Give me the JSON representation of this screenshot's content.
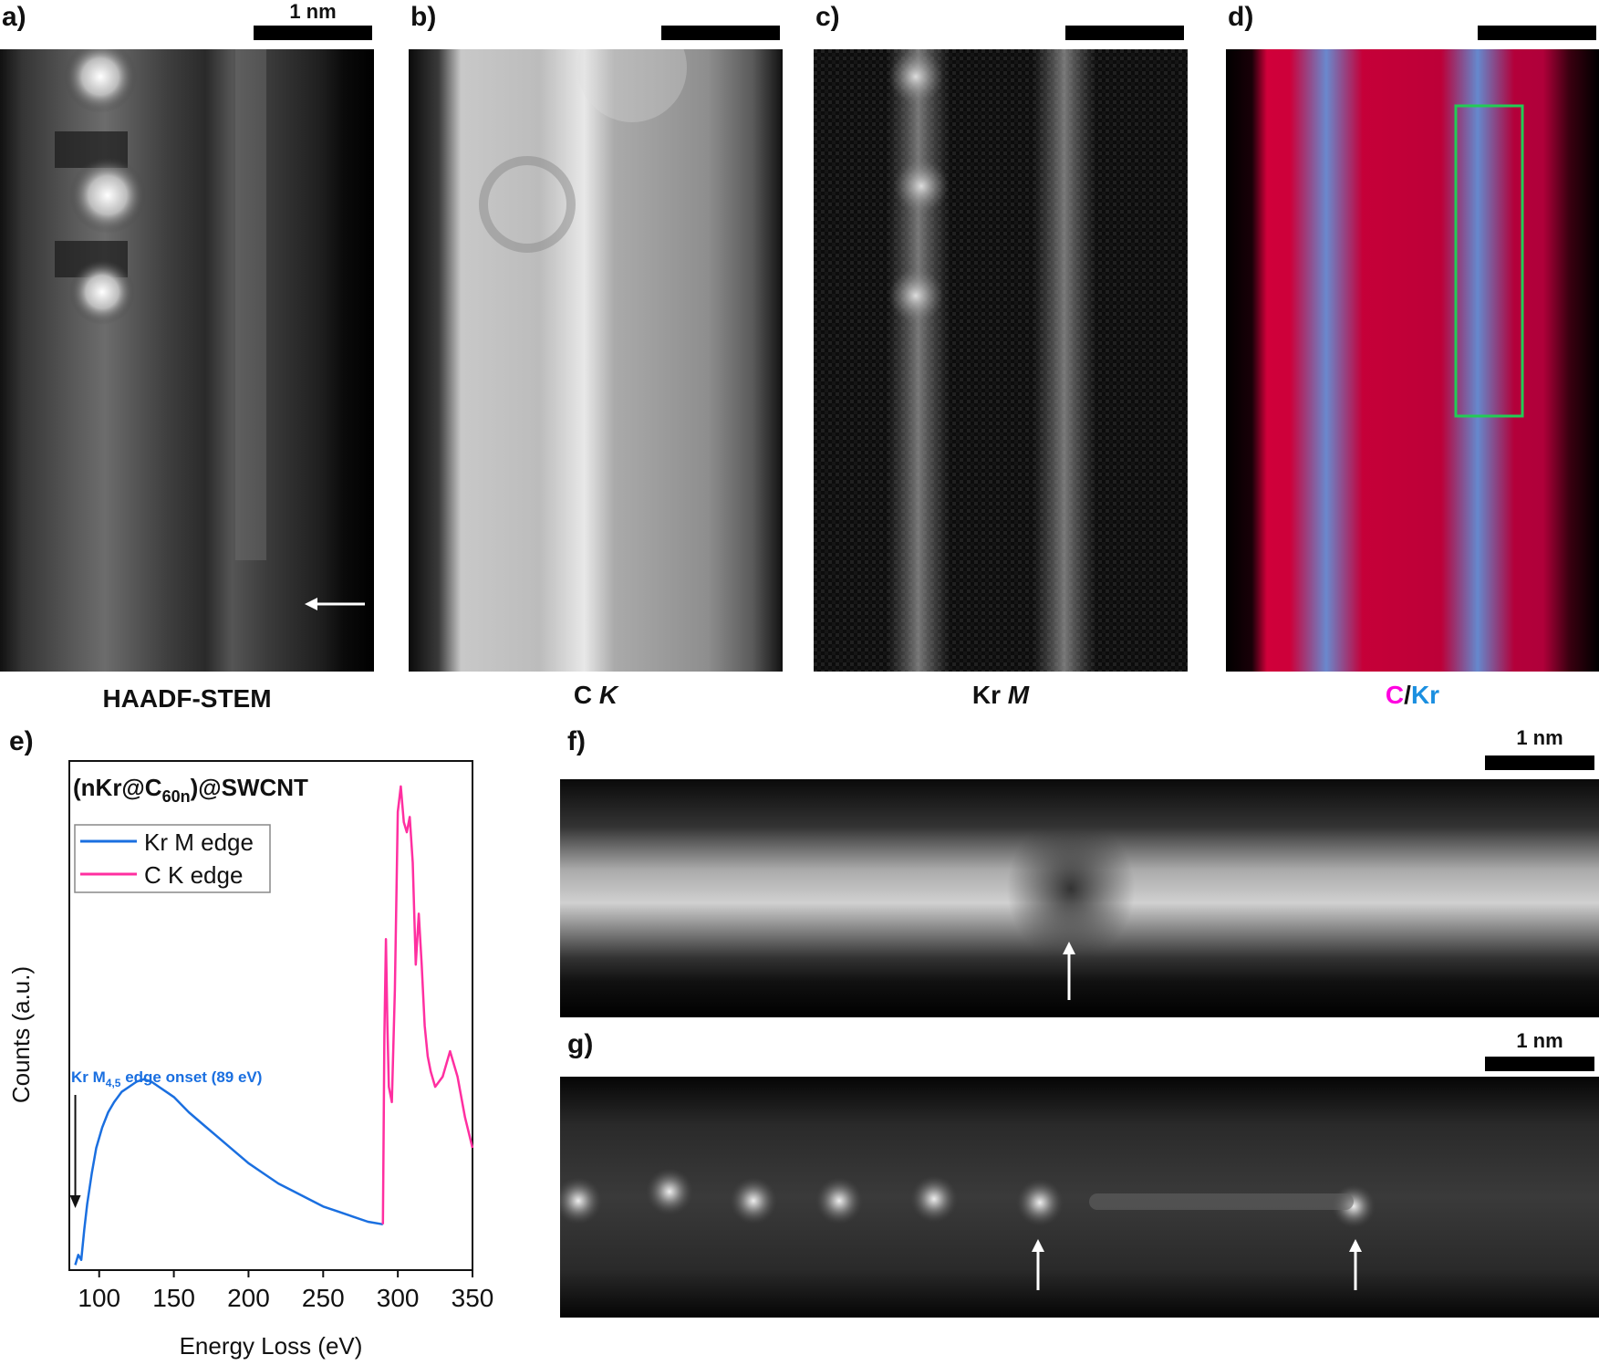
{
  "panels": {
    "a": {
      "label": "a)",
      "caption": "HAADF-STEM",
      "scalebar": "1 nm"
    },
    "b": {
      "label": "b)",
      "caption_prefix": "C ",
      "caption_italic": "K"
    },
    "c": {
      "label": "c)",
      "caption_prefix": "Kr ",
      "caption_italic": "M"
    },
    "d": {
      "label": "d)",
      "caption_c": "C",
      "caption_sep": "/",
      "caption_kr": "Kr",
      "colors": {
        "c": "#ff00e0",
        "kr": "#1a8fe0",
        "box": "#22cc55"
      }
    },
    "e": {
      "label": "e)"
    },
    "f": {
      "label": "f)",
      "scalebar": "1 nm"
    },
    "g": {
      "label": "g)",
      "scalebar": "1 nm"
    }
  },
  "chart_data": {
    "type": "line",
    "title_main": "(nKr@C",
    "title_sub": "60n",
    "title_end": ")@SWCNT",
    "xlabel": "Energy Loss (eV)",
    "ylabel": "Counts (a.u.)",
    "xlim": [
      80,
      350
    ],
    "ylim": [
      0,
      1
    ],
    "xticks": [
      100,
      150,
      200,
      250,
      300,
      350
    ],
    "legend_position": "top-left",
    "annotation": {
      "text_main": "Kr M",
      "text_sub": "4,5",
      "text_end": " edge onset (89 eV)",
      "x": 84
    },
    "series": [
      {
        "name": "Kr M edge",
        "color": "#1a6fe0",
        "x": [
          84,
          86,
          88,
          90,
          92,
          95,
          98,
          102,
          106,
          110,
          115,
          120,
          125,
          130,
          135,
          140,
          145,
          150,
          160,
          170,
          180,
          190,
          200,
          210,
          220,
          230,
          240,
          250,
          260,
          270,
          280,
          290
        ],
        "y": [
          0.01,
          0.03,
          0.02,
          0.08,
          0.13,
          0.19,
          0.24,
          0.28,
          0.31,
          0.33,
          0.35,
          0.36,
          0.37,
          0.375,
          0.37,
          0.36,
          0.35,
          0.34,
          0.31,
          0.285,
          0.26,
          0.235,
          0.21,
          0.19,
          0.17,
          0.155,
          0.14,
          0.125,
          0.115,
          0.105,
          0.095,
          0.09
        ]
      },
      {
        "name": "C K edge",
        "color": "#ff2fa0",
        "x": [
          290,
          291,
          292,
          293,
          294,
          296,
          298,
          300,
          302,
          304,
          306,
          308,
          310,
          312,
          314,
          316,
          318,
          320,
          322,
          325,
          330,
          335,
          340,
          345,
          350
        ],
        "y": [
          0.09,
          0.46,
          0.65,
          0.48,
          0.36,
          0.33,
          0.55,
          0.9,
          0.95,
          0.88,
          0.86,
          0.89,
          0.8,
          0.6,
          0.7,
          0.6,
          0.48,
          0.42,
          0.39,
          0.36,
          0.38,
          0.43,
          0.38,
          0.3,
          0.24
        ]
      }
    ]
  }
}
